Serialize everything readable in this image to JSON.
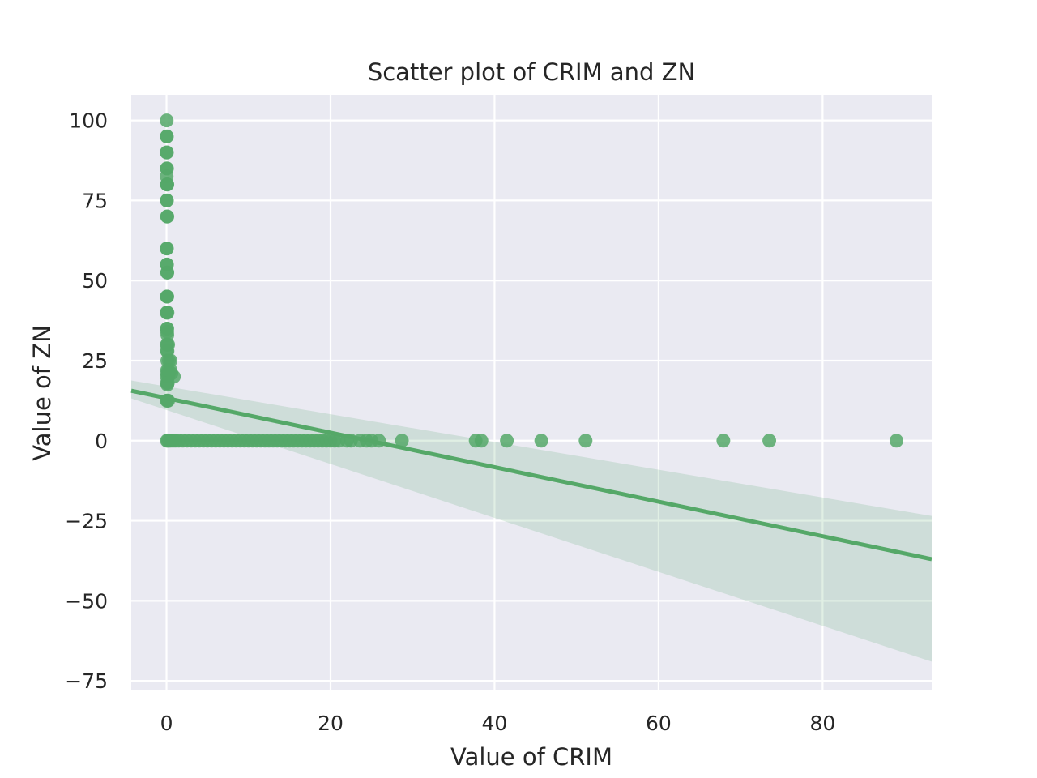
{
  "chart_data": {
    "type": "scatter",
    "title": "Scatter plot of CRIM and ZN",
    "xlabel": "Value of CRIM",
    "ylabel": "Value of ZN",
    "xlim": [
      -4.3,
      93.3
    ],
    "ylim": [
      -78,
      108
    ],
    "xticks": [
      0,
      20,
      40,
      60,
      80
    ],
    "yticks": [
      -75,
      -50,
      -25,
      0,
      25,
      50,
      75,
      100
    ],
    "xtick_labels": [
      "0",
      "20",
      "40",
      "60",
      "80"
    ],
    "ytick_labels": [
      "−75",
      "−50",
      "−25",
      "0",
      "25",
      "50",
      "75",
      "100"
    ],
    "grid": true,
    "colors": {
      "background": "#eaeaf2",
      "grid": "#ffffff",
      "points": "#55a868",
      "band": "#55a868"
    },
    "series": [
      {
        "points": [
          [
            0.02,
            100
          ],
          [
            0.03,
            95
          ],
          [
            0.04,
            95
          ],
          [
            0.01,
            90
          ],
          [
            0.05,
            90
          ],
          [
            0.03,
            85
          ],
          [
            0.06,
            85
          ],
          [
            0.02,
            82.5
          ],
          [
            0.04,
            80
          ],
          [
            0.08,
            80
          ],
          [
            0.1,
            80
          ],
          [
            0.03,
            75
          ],
          [
            0.05,
            75
          ],
          [
            0.06,
            70
          ],
          [
            0.1,
            70
          ],
          [
            0.02,
            60
          ],
          [
            0.05,
            60
          ],
          [
            0.04,
            55
          ],
          [
            0.06,
            55
          ],
          [
            0.08,
            52.5
          ],
          [
            0.1,
            52.5
          ],
          [
            0.03,
            45
          ],
          [
            0.07,
            45
          ],
          [
            0.09,
            45
          ],
          [
            0.02,
            40
          ],
          [
            0.06,
            40
          ],
          [
            0.12,
            40
          ],
          [
            0.05,
            35
          ],
          [
            0.09,
            35
          ],
          [
            0.08,
            34
          ],
          [
            0.1,
            33
          ],
          [
            0.04,
            30
          ],
          [
            0.1,
            30
          ],
          [
            0.2,
            30
          ],
          [
            0.06,
            28
          ],
          [
            0.12,
            28
          ],
          [
            0.1,
            25
          ],
          [
            0.3,
            25
          ],
          [
            0.5,
            25
          ],
          [
            0.08,
            22
          ],
          [
            0.2,
            22
          ],
          [
            0.5,
            22
          ],
          [
            0.1,
            21
          ],
          [
            0.3,
            21
          ],
          [
            0.6,
            21
          ],
          [
            0.04,
            20
          ],
          [
            0.2,
            20
          ],
          [
            0.9,
            20
          ],
          [
            0.05,
            18
          ],
          [
            0.15,
            18
          ],
          [
            0.1,
            17.5
          ],
          [
            0.03,
            12.5
          ],
          [
            0.1,
            12.5
          ],
          [
            0.2,
            12.5
          ],
          [
            0.05,
            0
          ],
          [
            0.15,
            0
          ],
          [
            0.3,
            0
          ],
          [
            0.5,
            0
          ],
          [
            0.8,
            0
          ],
          [
            1.1,
            0
          ],
          [
            1.5,
            0
          ],
          [
            2,
            0
          ],
          [
            2.5,
            0
          ],
          [
            3,
            0
          ],
          [
            3.5,
            0
          ],
          [
            4,
            0
          ],
          [
            4.5,
            0
          ],
          [
            5,
            0
          ],
          [
            5.5,
            0
          ],
          [
            6,
            0
          ],
          [
            6.5,
            0
          ],
          [
            7,
            0
          ],
          [
            7.5,
            0
          ],
          [
            8,
            0
          ],
          [
            8.5,
            0
          ],
          [
            9,
            0
          ],
          [
            9.5,
            0
          ],
          [
            10,
            0
          ],
          [
            10.5,
            0
          ],
          [
            11,
            0
          ],
          [
            11.5,
            0
          ],
          [
            12,
            0
          ],
          [
            12.5,
            0
          ],
          [
            13,
            0
          ],
          [
            13.5,
            0
          ],
          [
            14,
            0
          ],
          [
            14.5,
            0
          ],
          [
            15,
            0
          ],
          [
            15.5,
            0
          ],
          [
            16,
            0
          ],
          [
            16.5,
            0
          ],
          [
            17,
            0
          ],
          [
            17.5,
            0
          ],
          [
            18,
            0
          ],
          [
            18.5,
            0
          ],
          [
            19,
            0
          ],
          [
            19.5,
            0
          ],
          [
            20,
            0
          ],
          [
            20.5,
            0
          ],
          [
            21,
            0
          ],
          [
            22,
            0
          ],
          [
            22.5,
            0
          ],
          [
            23.6,
            0
          ],
          [
            24.4,
            0
          ],
          [
            25,
            0
          ],
          [
            25.9,
            0
          ],
          [
            28.7,
            0
          ],
          [
            37.7,
            0
          ],
          [
            38.4,
            0
          ],
          [
            41.5,
            0
          ],
          [
            45.7,
            0
          ],
          [
            51.1,
            0
          ],
          [
            67.9,
            0
          ],
          [
            73.5,
            0
          ],
          [
            89,
            0
          ]
        ]
      }
    ],
    "regression": {
      "x": [
        -4.3,
        93.3
      ],
      "y": [
        15.6,
        -37.0
      ],
      "ci_lower": [
        13.2,
        -69.0
      ],
      "ci_upper": [
        18.8,
        -23.5
      ]
    }
  }
}
